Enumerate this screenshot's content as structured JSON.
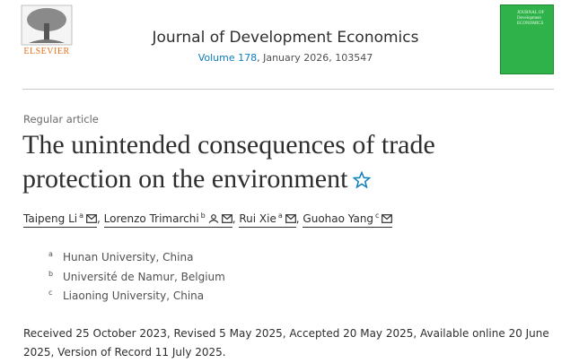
{
  "header": {
    "publisher": "ELSEVIER",
    "journal": "Journal of Development Economics",
    "volume": "Volume 178",
    "issue_info": ", January 2026, 103547",
    "cover_title": "JOURNAL OF Development ECONOMICS"
  },
  "article": {
    "type": "Regular article",
    "title": "The unintended consequences of trade protection on the environment",
    "separator": ", ",
    "authors": [
      {
        "name": "Taipeng Li",
        "affiliation": "a"
      },
      {
        "name": "Lorenzo Trimarchi",
        "affiliation": "b"
      },
      {
        "name": "Rui Xie",
        "affiliation": "a"
      },
      {
        "name": "Guohao Yang",
        "affiliation": "c"
      }
    ],
    "affiliations": [
      {
        "key": "a",
        "name": "Hunan University, China"
      },
      {
        "key": "b",
        "name": "Université de Namur, Belgium"
      },
      {
        "key": "c",
        "name": "Liaoning University, China"
      }
    ],
    "dates": "Received 25 October 2023, Revised 5 May 2025, Accepted 20 May 2025, Available online 20 June 2025, Version of Record 11 July 2025."
  }
}
